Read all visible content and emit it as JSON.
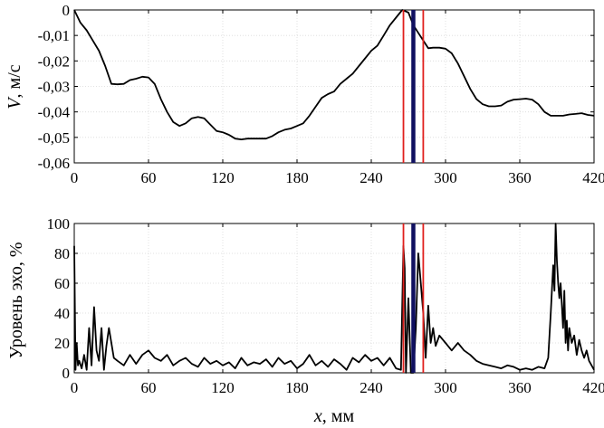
{
  "chart_data": [
    {
      "type": "line",
      "ylabel_var": "V",
      "ylabel_unit": ", м/с",
      "xlim": [
        0,
        420
      ],
      "ylim": [
        -0.06,
        0
      ],
      "x_ticks": [
        "0",
        "60",
        "120",
        "180",
        "240",
        "300",
        "360",
        "420"
      ],
      "y_ticks": [
        "0",
        "-0,01",
        "-0,02",
        "-0,03",
        "-0,04",
        "-0,05",
        "-0,06"
      ],
      "grid": true,
      "markers": {
        "red_lines_x": [
          266,
          282
        ],
        "blue_line_x": 274
      },
      "series": [
        {
          "x": [
            0,
            5,
            10,
            15,
            20,
            25,
            30,
            35,
            40,
            45,
            50,
            55,
            60,
            65,
            70,
            75,
            80,
            85,
            90,
            95,
            100,
            105,
            110,
            115,
            120,
            125,
            130,
            135,
            140,
            145,
            150,
            155,
            160,
            165,
            170,
            175,
            180,
            185,
            190,
            195,
            200,
            205,
            210,
            215,
            220,
            225,
            230,
            235,
            240,
            245,
            250,
            255,
            260,
            265,
            270,
            274,
            278,
            282,
            286,
            290,
            295,
            300,
            305,
            310,
            315,
            320,
            325,
            330,
            335,
            340,
            345,
            350,
            355,
            360,
            365,
            370,
            375,
            380,
            385,
            390,
            395,
            400,
            405,
            410,
            415,
            420
          ],
          "y": [
            0,
            -0.005,
            -0.008,
            -0.012,
            -0.016,
            -0.022,
            -0.029,
            -0.0292,
            -0.029,
            -0.0275,
            -0.027,
            -0.0262,
            -0.0265,
            -0.029,
            -0.035,
            -0.04,
            -0.044,
            -0.0455,
            -0.0445,
            -0.0425,
            -0.042,
            -0.0425,
            -0.045,
            -0.0475,
            -0.048,
            -0.049,
            -0.0505,
            -0.0508,
            -0.0505,
            -0.0505,
            -0.0505,
            -0.0505,
            -0.0495,
            -0.048,
            -0.047,
            -0.0465,
            -0.0455,
            -0.0445,
            -0.0415,
            -0.038,
            -0.0345,
            -0.033,
            -0.032,
            -0.029,
            -0.027,
            -0.025,
            -0.022,
            -0.019,
            -0.016,
            -0.014,
            -0.01,
            -0.006,
            -0.003,
            0,
            -0.001,
            -0.006,
            -0.009,
            -0.012,
            -0.015,
            -0.0148,
            -0.0148,
            -0.0152,
            -0.017,
            -0.021,
            -0.026,
            -0.031,
            -0.035,
            -0.037,
            -0.0378,
            -0.0378,
            -0.0375,
            -0.036,
            -0.0352,
            -0.035,
            -0.0348,
            -0.0352,
            -0.037,
            -0.04,
            -0.0415,
            -0.0415,
            -0.0415,
            -0.041,
            -0.0408,
            -0.0405,
            -0.0412,
            -0.0415
          ]
        }
      ]
    },
    {
      "type": "line",
      "ylabel": "Уровень эхо, %",
      "xlabel_var": "x",
      "xlabel_unit": ", мм",
      "xlim": [
        0,
        420
      ],
      "ylim": [
        0,
        100
      ],
      "x_ticks": [
        "0",
        "60",
        "120",
        "180",
        "240",
        "300",
        "360",
        "420"
      ],
      "y_ticks": [
        "0",
        "20",
        "40",
        "60",
        "80",
        "100"
      ],
      "grid": true,
      "markers": {
        "red_lines_x": [
          266,
          282
        ],
        "blue_line_x": 274
      },
      "series": [
        {
          "x": [
            0,
            1,
            2,
            3,
            4,
            6,
            8,
            10,
            12,
            14,
            16,
            18,
            20,
            22,
            24,
            26,
            28,
            30,
            32,
            35,
            40,
            45,
            50,
            55,
            60,
            65,
            70,
            75,
            80,
            85,
            90,
            95,
            100,
            105,
            110,
            115,
            120,
            125,
            130,
            135,
            140,
            145,
            150,
            155,
            160,
            165,
            170,
            175,
            180,
            185,
            190,
            195,
            200,
            205,
            210,
            215,
            220,
            225,
            230,
            235,
            240,
            245,
            250,
            255,
            260,
            264,
            266,
            267,
            268,
            270,
            272,
            274,
            276,
            278,
            280,
            282,
            284,
            286,
            288,
            290,
            292,
            295,
            300,
            305,
            310,
            315,
            320,
            325,
            330,
            335,
            340,
            345,
            350,
            355,
            360,
            365,
            370,
            375,
            380,
            383,
            385,
            387,
            388,
            389,
            390,
            391,
            392,
            393,
            394,
            395,
            396,
            397,
            398,
            399,
            400,
            402,
            404,
            406,
            408,
            410,
            412,
            414,
            416,
            418,
            420
          ],
          "y": [
            85,
            2,
            20,
            5,
            8,
            3,
            12,
            2,
            30,
            5,
            44,
            15,
            8,
            30,
            2,
            18,
            30,
            20,
            10,
            8,
            5,
            12,
            6,
            12,
            15,
            10,
            8,
            12,
            5,
            8,
            10,
            6,
            4,
            10,
            6,
            8,
            5,
            7,
            3,
            10,
            5,
            7,
            6,
            9,
            4,
            10,
            6,
            8,
            3,
            6,
            12,
            5,
            8,
            4,
            9,
            6,
            2,
            10,
            7,
            12,
            8,
            10,
            5,
            10,
            3,
            2,
            85,
            70,
            0,
            50,
            0,
            0,
            30,
            80,
            60,
            40,
            10,
            45,
            20,
            30,
            18,
            25,
            20,
            15,
            20,
            15,
            12,
            8,
            6,
            5,
            4,
            3,
            5,
            4,
            2,
            3,
            2,
            4,
            3,
            10,
            40,
            72,
            55,
            100,
            75,
            60,
            50,
            60,
            45,
            30,
            55,
            20,
            35,
            15,
            30,
            20,
            25,
            12,
            22,
            15,
            10,
            15,
            8,
            5,
            2
          ]
        }
      ]
    }
  ]
}
